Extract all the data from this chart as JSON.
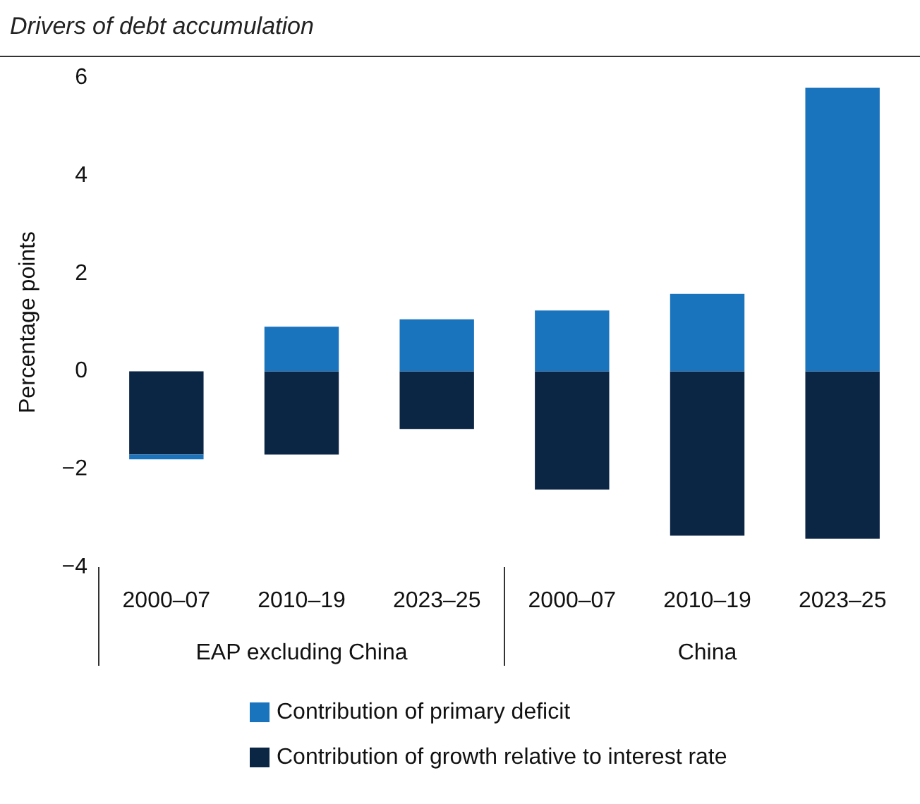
{
  "chart_data": {
    "type": "bar",
    "title": "Drivers of debt accumulation",
    "ylabel": "Percentage points",
    "categories": [
      "2000–07",
      "2010–19",
      "2023–25",
      "2000–07",
      "2010–19",
      "2023–25"
    ],
    "series": [
      {
        "name": "Contribution of growth relative to interest rate",
        "color": "#0b2545",
        "values": [
          -1.7,
          -1.7,
          -1.18,
          -2.42,
          -3.36,
          -3.42
        ]
      },
      {
        "name": "Contribution of primary deficit",
        "color": "#1a73bd",
        "values": [
          -0.1,
          0.91,
          1.06,
          1.24,
          1.58,
          5.79
        ]
      }
    ],
    "stacked": true,
    "ylim": [
      -4,
      6
    ],
    "yticks": [
      {
        "value": -4,
        "label": "−4"
      },
      {
        "value": -2,
        "label": "−2"
      },
      0,
      2,
      4,
      6
    ],
    "annotations": [
      "EAP excluding China",
      "China"
    ],
    "legend": "bottom",
    "grid": false
  }
}
